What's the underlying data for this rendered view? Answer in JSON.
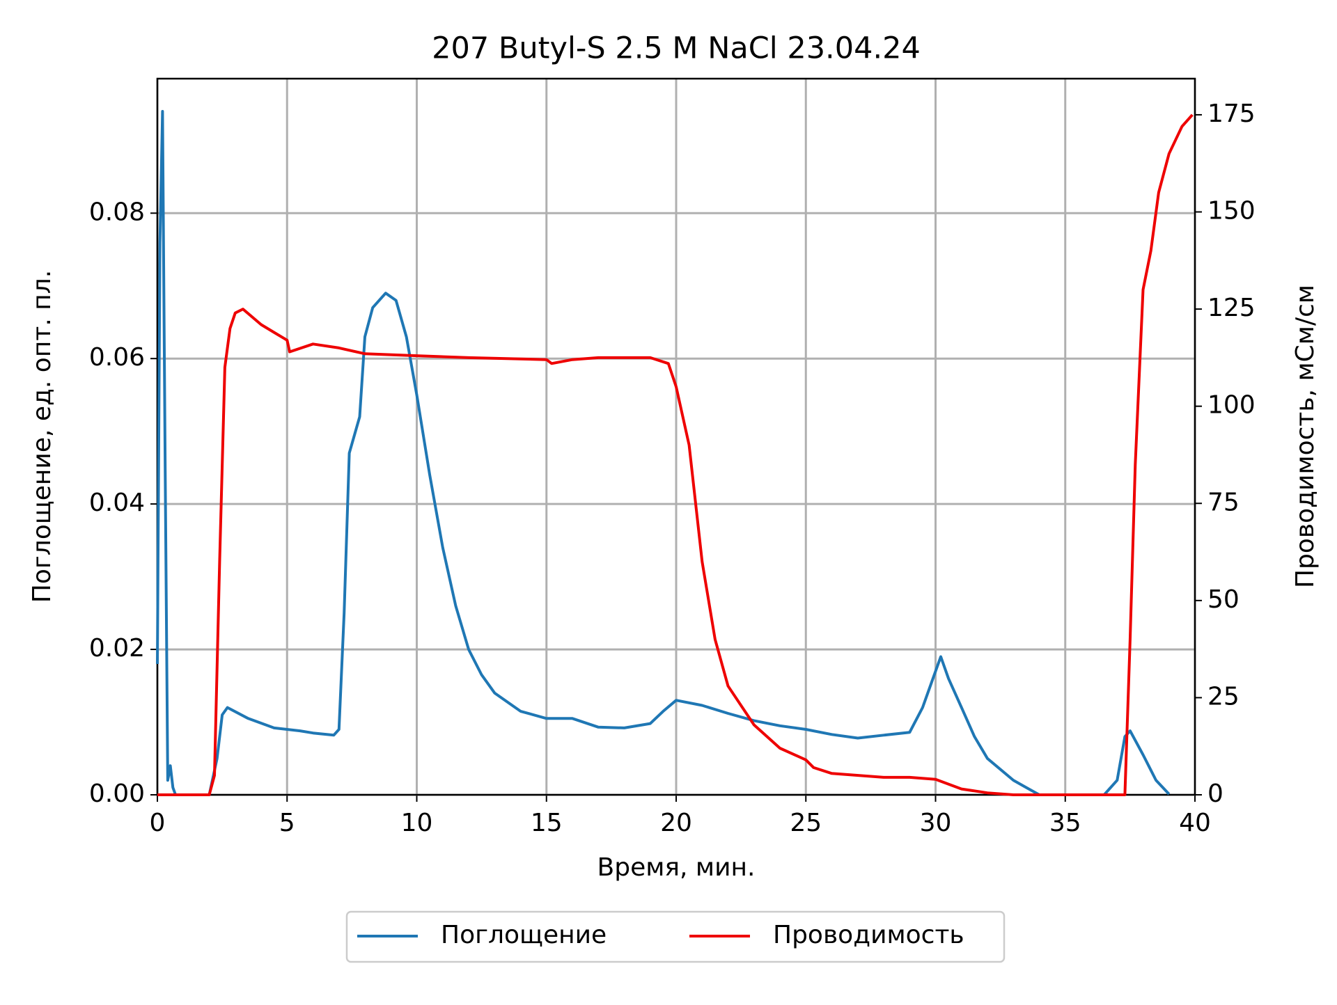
{
  "chart_data": {
    "type": "line",
    "title": "207 Butyl-S 2.5 M NaCl 23.04.24",
    "xlabel": "Время, мин.",
    "ylabel": "Поглощение, ед. опт. пл.",
    "y2label": "Проводимость, мСм/см",
    "xlim": [
      0,
      40
    ],
    "xticks": [
      0,
      5,
      10,
      15,
      20,
      25,
      30,
      35,
      40
    ],
    "ylim": [
      0,
      0.0985
    ],
    "yticks": [
      {
        "value": 0,
        "label": "0.00"
      },
      0.02,
      0.04,
      0.06,
      0.08
    ],
    "y2lim": [
      0,
      184.3
    ],
    "y2ticks": [
      0,
      25,
      50,
      75,
      100,
      125,
      150,
      175
    ],
    "grid": true,
    "legend": "below",
    "series": [
      {
        "name": "Поглощение",
        "color": "#1f77b4",
        "x": [
          0,
          0.1,
          0.2,
          0.3,
          0.4,
          0.5,
          0.6,
          0.7,
          2.0,
          2.3,
          2.5,
          2.7,
          3.5,
          4.5,
          5.5,
          6.0,
          6.8,
          7.0,
          7.2,
          7.4,
          7.8,
          8.0,
          8.3,
          8.8,
          9.2,
          9.6,
          10,
          10.5,
          11,
          11.5,
          12,
          12.5,
          13,
          14,
          15,
          16,
          17,
          18,
          19,
          19.5,
          20,
          21,
          22,
          23,
          24,
          25,
          26,
          27,
          28,
          29,
          29.5,
          30,
          30.2,
          30.5,
          31,
          31.5,
          32,
          33,
          33.5,
          34,
          36.5,
          37,
          37.3,
          37.5,
          38,
          38.5,
          39
        ],
        "values": [
          0.018,
          0.076,
          0.094,
          0.045,
          0.002,
          0.004,
          0.001,
          0,
          0,
          0.005,
          0.011,
          0.012,
          0.0105,
          0.0092,
          0.0088,
          0.0085,
          0.0082,
          0.009,
          0.025,
          0.047,
          0.052,
          0.063,
          0.067,
          0.069,
          0.068,
          0.063,
          0.055,
          0.044,
          0.034,
          0.026,
          0.02,
          0.0165,
          0.014,
          0.0115,
          0.0105,
          0.0105,
          0.0093,
          0.0092,
          0.0098,
          0.0115,
          0.013,
          0.0123,
          0.0112,
          0.0102,
          0.0095,
          0.009,
          0.0083,
          0.0078,
          0.0082,
          0.0086,
          0.012,
          0.017,
          0.019,
          0.016,
          0.012,
          0.008,
          0.005,
          0.002,
          0.001,
          0,
          0,
          0.002,
          0.008,
          0.0088,
          0.0055,
          0.002,
          0.0001
        ]
      },
      {
        "name": "Проводимость",
        "color": "#ee0000",
        "axis": "y2",
        "x": [
          0,
          2.0,
          2.2,
          2.4,
          2.6,
          2.8,
          3,
          3.3,
          4,
          4.5,
          5,
          5.1,
          6,
          7,
          8,
          10,
          12,
          15,
          15.2,
          16,
          17,
          19,
          19.7,
          20,
          20.5,
          21,
          21.5,
          22,
          23,
          24,
          25,
          25.3,
          26,
          28,
          29,
          30,
          31,
          32,
          33,
          37.3,
          37.5,
          37.7,
          38,
          38.3,
          38.6,
          39,
          39.5,
          39.9
        ],
        "values": [
          0,
          0,
          5,
          60,
          110,
          120,
          124,
          125,
          121,
          119,
          117,
          114,
          116,
          115,
          113.5,
          113,
          112.5,
          112,
          111,
          112,
          112.5,
          112.5,
          111,
          105,
          90,
          60,
          40,
          28,
          18,
          12,
          9,
          7,
          5.5,
          4.5,
          4.5,
          4,
          1.5,
          0.5,
          0,
          0,
          40,
          85,
          130,
          140,
          155,
          165,
          172,
          175
        ]
      }
    ]
  }
}
